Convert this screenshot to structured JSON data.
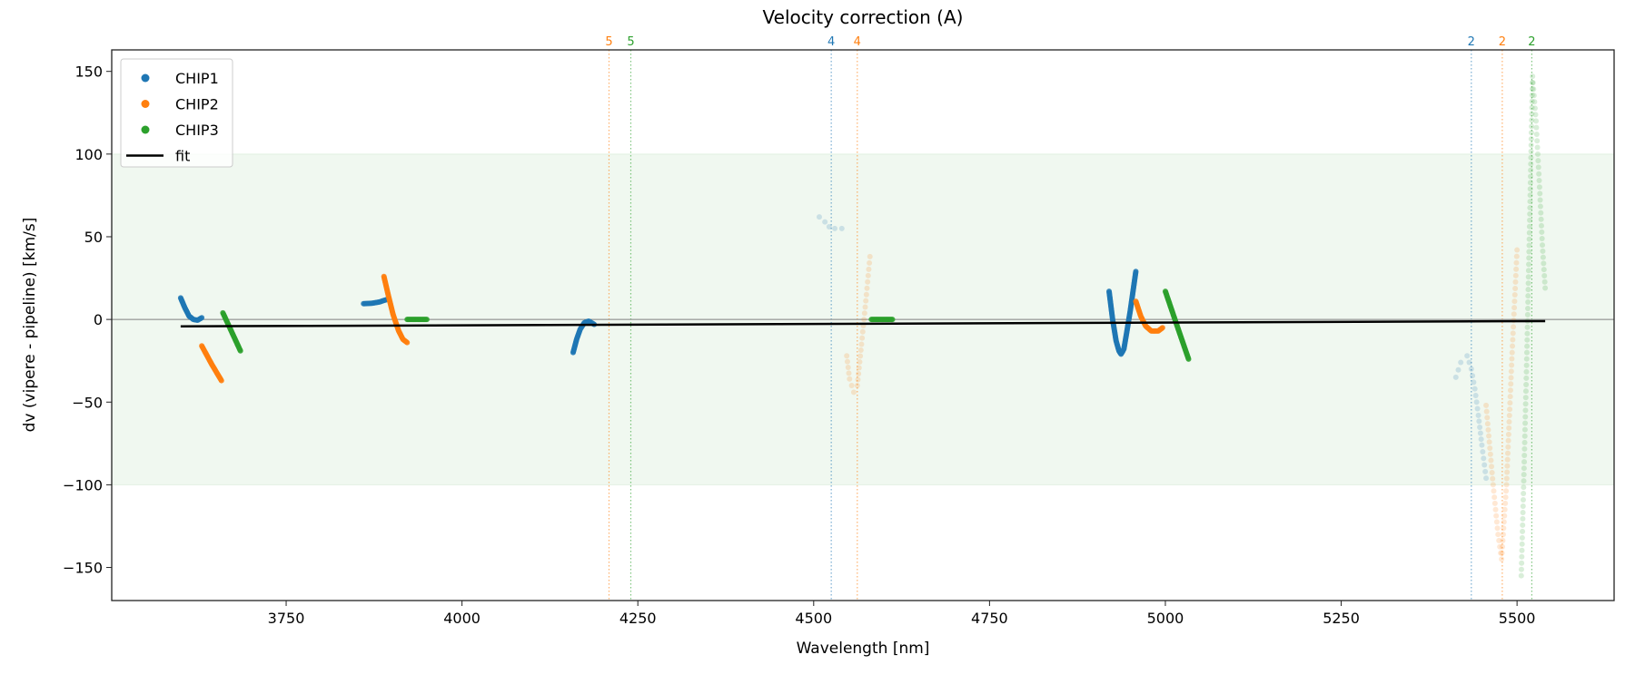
{
  "chart_data": {
    "type": "scatter",
    "title": "Velocity correction (A)",
    "xlabel": "Wavelength [nm]",
    "ylabel": "dv (vipere - pipeline) [km/s]",
    "xlim": [
      3502,
      5638
    ],
    "ylim": [
      -170,
      163
    ],
    "xticks": [
      3750,
      4000,
      4250,
      4500,
      4750,
      5000,
      5250,
      5500
    ],
    "yticks": [
      -150,
      -100,
      -50,
      0,
      50,
      100,
      150
    ],
    "band": {
      "from": -100,
      "to": 100,
      "color": "#2ca02c"
    },
    "zero_line": 0,
    "legend_position": "top-left",
    "legend": [
      {
        "label": "CHIP1",
        "color": "#1f77b4",
        "kind": "marker"
      },
      {
        "label": "CHIP2",
        "color": "#ff7f0e",
        "kind": "marker"
      },
      {
        "label": "CHIP3",
        "color": "#2ca02c",
        "kind": "marker"
      },
      {
        "label": "fit",
        "color": "#000000",
        "kind": "line"
      }
    ],
    "fit": {
      "name": "fit",
      "points": [
        [
          3600,
          -4.2
        ],
        [
          5540,
          -1.0
        ]
      ]
    },
    "order_markers": [
      {
        "label": "5",
        "x": 4209,
        "color": "#ff7f0e"
      },
      {
        "label": "5",
        "x": 4240,
        "color": "#2ca02c"
      },
      {
        "label": "4",
        "x": 4525,
        "color": "#1f77b4"
      },
      {
        "label": "4",
        "x": 4562,
        "color": "#ff7f0e"
      },
      {
        "label": "2",
        "x": 5435,
        "color": "#1f77b4"
      },
      {
        "label": "2",
        "x": 5479,
        "color": "#ff7f0e"
      },
      {
        "label": "2",
        "x": 5521,
        "color": "#2ca02c"
      }
    ],
    "series": [
      {
        "name": "CHIP1",
        "color": "#1f77b4",
        "segments": [
          {
            "faded": false,
            "points": [
              [
                3600,
                13
              ],
              [
                3606,
                7
              ],
              [
                3612,
                2
              ],
              [
                3618,
                0
              ],
              [
                3624,
                -0.5
              ],
              [
                3630,
                1
              ]
            ]
          },
          {
            "faded": false,
            "points": [
              [
                3860,
                9.5
              ],
              [
                3872,
                9.8
              ],
              [
                3882,
                10.5
              ],
              [
                3893,
                12
              ]
            ]
          },
          {
            "faded": false,
            "points": [
              [
                4158,
                -20
              ],
              [
                4163,
                -12
              ],
              [
                4168,
                -6
              ],
              [
                4174,
                -2
              ],
              [
                4180,
                -1
              ],
              [
                4188,
                -3
              ]
            ]
          },
          {
            "faded": true,
            "points": [
              [
                4508,
                62
              ],
              [
                4516,
                59
              ],
              [
                4522,
                56
              ],
              [
                4530,
                55
              ],
              [
                4540,
                55
              ]
            ]
          },
          {
            "faded": false,
            "points": [
              [
                4920,
                17
              ],
              [
                4925,
                0
              ],
              [
                4930,
                -13
              ],
              [
                4934,
                -19
              ],
              [
                4937,
                -21
              ],
              [
                4941,
                -18
              ],
              [
                4945,
                -8
              ],
              [
                4950,
                5
              ],
              [
                4958,
                29
              ]
            ]
          },
          {
            "faded": true,
            "points": [
              [
                5413,
                -35
              ],
              [
                5420,
                -26
              ],
              [
                5429,
                -22
              ],
              [
                5435,
                -30
              ],
              [
                5440,
                -42
              ],
              [
                5445,
                -58
              ],
              [
                5450,
                -76
              ],
              [
                5456,
                -96
              ]
            ]
          }
        ]
      },
      {
        "name": "CHIP2",
        "color": "#ff7f0e",
        "segments": [
          {
            "faded": false,
            "points": [
              [
                3630,
                -16
              ],
              [
                3644,
                -27
              ],
              [
                3658,
                -37
              ]
            ]
          },
          {
            "faded": false,
            "points": [
              [
                3889,
                26
              ],
              [
                3895,
                15
              ],
              [
                3902,
                3
              ],
              [
                3910,
                -7
              ],
              [
                3916,
                -12
              ],
              [
                3922,
                -14
              ]
            ]
          },
          {
            "faded": true,
            "points": [
              [
                4547,
                -22
              ],
              [
                4551,
                -36
              ],
              [
                4557,
                -44
              ],
              [
                4562,
                -40
              ],
              [
                4568,
                -15
              ],
              [
                4575,
                15
              ],
              [
                4580,
                38
              ]
            ]
          },
          {
            "faded": false,
            "points": [
              [
                4958,
                11
              ],
              [
                4965,
                2
              ],
              [
                4972,
                -4
              ],
              [
                4980,
                -7
              ],
              [
                4990,
                -7
              ],
              [
                4996,
                -5
              ]
            ]
          },
          {
            "faded": true,
            "points": [
              [
                5456,
                -52
              ],
              [
                5466,
                -100
              ],
              [
                5473,
                -130
              ],
              [
                5478,
                -145
              ],
              [
                5485,
                -100
              ],
              [
                5493,
                -20
              ],
              [
                5500,
                42
              ]
            ]
          }
        ]
      },
      {
        "name": "CHIP3",
        "color": "#2ca02c",
        "segments": [
          {
            "faded": false,
            "points": [
              [
                3660,
                4
              ],
              [
                3672,
                -7
              ],
              [
                3685,
                -19
              ]
            ]
          },
          {
            "faded": false,
            "points": [
              [
                3922,
                0
              ],
              [
                3950,
                0
              ]
            ]
          },
          {
            "faded": false,
            "points": [
              [
                4582,
                0
              ],
              [
                4612,
                0
              ]
            ]
          },
          {
            "faded": false,
            "points": [
              [
                5000,
                17
              ],
              [
                5016,
                -3
              ],
              [
                5033,
                -24
              ]
            ]
          },
          {
            "faded": true,
            "points": [
              [
                5506,
                -155
              ],
              [
                5510,
                -90
              ],
              [
                5514,
                -20
              ],
              [
                5518,
                60
              ],
              [
                5522,
                147
              ],
              [
                5527,
                120
              ],
              [
                5532,
                80
              ],
              [
                5536,
                45
              ],
              [
                5540,
                19
              ]
            ]
          }
        ]
      }
    ]
  }
}
